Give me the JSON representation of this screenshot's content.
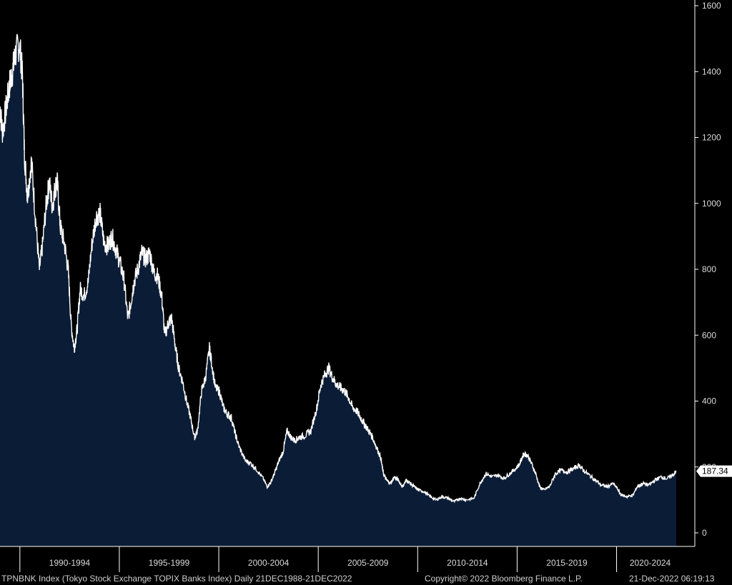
{
  "chart_data": {
    "type": "area",
    "title": "",
    "ylim": [
      0,
      1600
    ],
    "y_ticks": [
      0,
      200,
      400,
      600,
      800,
      1000,
      1200,
      1400,
      1600
    ],
    "x_periods": [
      "1990-1994",
      "1995-1999",
      "2000-2004",
      "2005-2009",
      "2010-2014",
      "2015-2019",
      "2020-2024"
    ],
    "x_range": [
      1988.97,
      2022.97
    ],
    "last_value": "187.34",
    "series": [
      {
        "values": [
          [
            1988.97,
            1290
          ],
          [
            1989.1,
            1215
          ],
          [
            1989.3,
            1300
          ],
          [
            1989.45,
            1360
          ],
          [
            1989.6,
            1400
          ],
          [
            1989.75,
            1455
          ],
          [
            1989.95,
            1485
          ],
          [
            1990.1,
            1390
          ],
          [
            1990.2,
            1150
          ],
          [
            1990.35,
            1020
          ],
          [
            1990.55,
            1130
          ],
          [
            1990.75,
            960
          ],
          [
            1990.95,
            800
          ],
          [
            1991.1,
            870
          ],
          [
            1991.3,
            1000
          ],
          [
            1991.45,
            1065
          ],
          [
            1991.6,
            990
          ],
          [
            1991.75,
            1050
          ],
          [
            1991.85,
            1065
          ],
          [
            1992.0,
            930
          ],
          [
            1992.2,
            880
          ],
          [
            1992.4,
            800
          ],
          [
            1992.55,
            630
          ],
          [
            1992.7,
            560
          ],
          [
            1992.85,
            620
          ],
          [
            1993.0,
            740
          ],
          [
            1993.2,
            720
          ],
          [
            1993.4,
            760
          ],
          [
            1993.6,
            880
          ],
          [
            1993.8,
            960
          ],
          [
            1994.0,
            970
          ],
          [
            1994.2,
            880
          ],
          [
            1994.4,
            870
          ],
          [
            1994.6,
            900
          ],
          [
            1994.8,
            860
          ],
          [
            1995.0,
            820
          ],
          [
            1995.2,
            770
          ],
          [
            1995.4,
            650
          ],
          [
            1995.55,
            700
          ],
          [
            1995.7,
            760
          ],
          [
            1995.9,
            800
          ],
          [
            1996.1,
            850
          ],
          [
            1996.3,
            830
          ],
          [
            1996.5,
            850
          ],
          [
            1996.7,
            790
          ],
          [
            1996.9,
            780
          ],
          [
            1997.1,
            720
          ],
          [
            1997.25,
            600
          ],
          [
            1997.45,
            640
          ],
          [
            1997.6,
            650
          ],
          [
            1997.8,
            560
          ],
          [
            1997.95,
            500
          ],
          [
            1998.15,
            460
          ],
          [
            1998.35,
            400
          ],
          [
            1998.55,
            350
          ],
          [
            1998.75,
            290
          ],
          [
            1998.9,
            310
          ],
          [
            1999.1,
            430
          ],
          [
            1999.3,
            470
          ],
          [
            1999.5,
            560
          ],
          [
            1999.6,
            520
          ],
          [
            1999.8,
            440
          ],
          [
            2000.0,
            430
          ],
          [
            2000.2,
            380
          ],
          [
            2000.4,
            360
          ],
          [
            2000.6,
            350
          ],
          [
            2000.8,
            300
          ],
          [
            2001.0,
            260
          ],
          [
            2001.3,
            220
          ],
          [
            2001.6,
            210
          ],
          [
            2001.9,
            190
          ],
          [
            2002.2,
            165
          ],
          [
            2002.4,
            140
          ],
          [
            2002.6,
            155
          ],
          [
            2002.8,
            185
          ],
          [
            2003.0,
            220
          ],
          [
            2003.2,
            245
          ],
          [
            2003.4,
            310
          ],
          [
            2003.6,
            290
          ],
          [
            2003.8,
            280
          ],
          [
            2004.0,
            290
          ],
          [
            2004.3,
            295
          ],
          [
            2004.6,
            310
          ],
          [
            2004.9,
            380
          ],
          [
            2005.1,
            450
          ],
          [
            2005.3,
            480
          ],
          [
            2005.5,
            500
          ],
          [
            2005.7,
            470
          ],
          [
            2005.9,
            450
          ],
          [
            2006.1,
            440
          ],
          [
            2006.3,
            430
          ],
          [
            2006.5,
            410
          ],
          [
            2006.7,
            380
          ],
          [
            2006.9,
            370
          ],
          [
            2007.1,
            350
          ],
          [
            2007.3,
            330
          ],
          [
            2007.5,
            310
          ],
          [
            2007.7,
            290
          ],
          [
            2007.9,
            260
          ],
          [
            2008.1,
            230
          ],
          [
            2008.25,
            180
          ],
          [
            2008.4,
            160
          ],
          [
            2008.6,
            150
          ],
          [
            2008.8,
            170
          ],
          [
            2009.0,
            160
          ],
          [
            2009.2,
            140
          ],
          [
            2009.4,
            160
          ],
          [
            2009.6,
            150
          ],
          [
            2009.8,
            140
          ],
          [
            2010.0,
            130
          ],
          [
            2010.3,
            125
          ],
          [
            2010.6,
            110
          ],
          [
            2010.9,
            100
          ],
          [
            2011.2,
            110
          ],
          [
            2011.5,
            105
          ],
          [
            2011.8,
            95
          ],
          [
            2012.1,
            105
          ],
          [
            2012.4,
            100
          ],
          [
            2012.8,
            105
          ],
          [
            2013.1,
            150
          ],
          [
            2013.4,
            180
          ],
          [
            2013.7,
            170
          ],
          [
            2014.0,
            175
          ],
          [
            2014.3,
            165
          ],
          [
            2014.6,
            180
          ],
          [
            2014.9,
            195
          ],
          [
            2015.1,
            210
          ],
          [
            2015.3,
            240
          ],
          [
            2015.5,
            235
          ],
          [
            2015.7,
            210
          ],
          [
            2015.9,
            180
          ],
          [
            2016.1,
            140
          ],
          [
            2016.3,
            130
          ],
          [
            2016.6,
            140
          ],
          [
            2016.9,
            180
          ],
          [
            2017.2,
            190
          ],
          [
            2017.5,
            185
          ],
          [
            2017.8,
            195
          ],
          [
            2018.1,
            205
          ],
          [
            2018.3,
            190
          ],
          [
            2018.6,
            175
          ],
          [
            2018.9,
            160
          ],
          [
            2019.2,
            145
          ],
          [
            2019.5,
            140
          ],
          [
            2019.8,
            150
          ],
          [
            2020.0,
            135
          ],
          [
            2020.2,
            115
          ],
          [
            2020.5,
            110
          ],
          [
            2020.8,
            115
          ],
          [
            2021.0,
            140
          ],
          [
            2021.3,
            150
          ],
          [
            2021.6,
            145
          ],
          [
            2021.9,
            160
          ],
          [
            2022.2,
            170
          ],
          [
            2022.5,
            165
          ],
          [
            2022.8,
            175
          ],
          [
            2022.97,
            187.34
          ]
        ]
      }
    ],
    "colors": {
      "line": "#ffffff",
      "fill": "#0b1c36",
      "background": "#000000",
      "axis": "#ffffff"
    },
    "grid": false
  },
  "footer": {
    "index_text": "TPNBNK Index (Tokyo Stock Exchange TOPIX Banks Index)  Daily 21DEC1988-21DEC2022",
    "copyright": "Copyright© 2022 Bloomberg Finance L.P.",
    "timestamp": "21-Dec-2022 06:19:13"
  }
}
